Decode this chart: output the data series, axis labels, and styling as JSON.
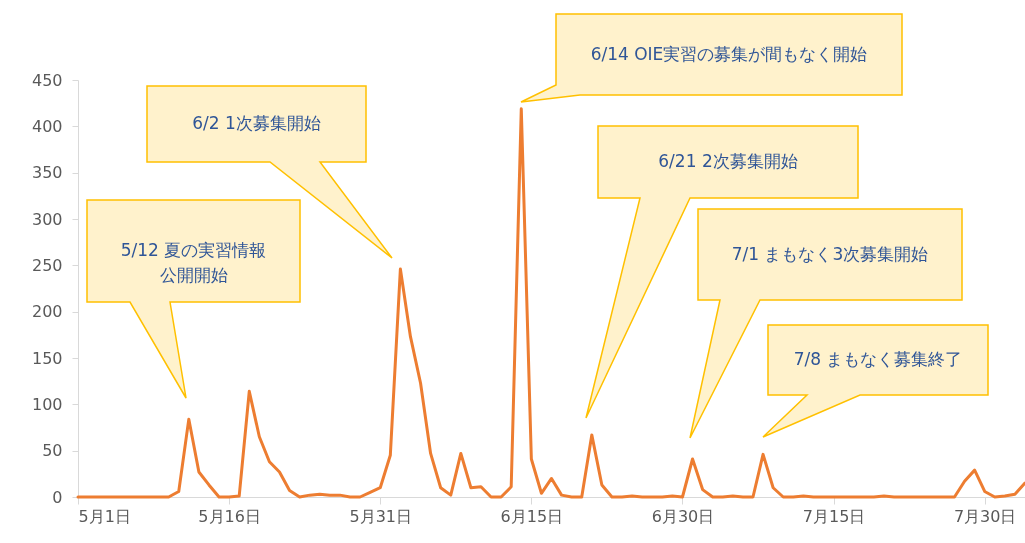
{
  "chart_data": {
    "type": "line",
    "x": [
      "--05-01",
      "--05-02",
      "--05-03",
      "--05-04",
      "--05-05",
      "--05-06",
      "--05-07",
      "--05-08",
      "--05-09",
      "--05-10",
      "--05-11",
      "--05-12",
      "--05-13",
      "--05-14",
      "--05-15",
      "--05-16",
      "--05-17",
      "--05-18",
      "--05-19",
      "--05-20",
      "--05-21",
      "--05-22",
      "--05-23",
      "--05-24",
      "--05-25",
      "--05-26",
      "--05-27",
      "--05-28",
      "--05-29",
      "--05-30",
      "--05-31",
      "--06-01",
      "--06-02",
      "--06-03",
      "--06-04",
      "--06-05",
      "--06-06",
      "--06-07",
      "--06-08",
      "--06-09",
      "--06-10",
      "--06-11",
      "--06-12",
      "--06-13",
      "--06-14",
      "--06-15",
      "--06-16",
      "--06-17",
      "--06-18",
      "--06-19",
      "--06-20",
      "--06-21",
      "--06-22",
      "--06-23",
      "--06-24",
      "--06-25",
      "--06-26",
      "--06-27",
      "--06-28",
      "--06-29",
      "--06-30",
      "--07-01",
      "--07-02",
      "--07-03",
      "--07-04",
      "--07-05",
      "--07-06",
      "--07-07",
      "--07-08",
      "--07-09",
      "--07-10",
      "--07-11",
      "--07-12",
      "--07-13",
      "--07-14",
      "--07-15",
      "--07-16",
      "--07-17",
      "--07-18",
      "--07-19",
      "--07-20",
      "--07-21",
      "--07-22",
      "--07-23",
      "--07-24",
      "--07-25",
      "--07-26",
      "--07-27",
      "--07-28",
      "--07-29",
      "--07-30",
      "--07-31",
      "--08-01",
      "--08-02",
      "--08-03"
    ],
    "series": [
      {
        "color": "#ed7d31",
        "values": [
          0,
          0,
          0,
          0,
          0,
          0,
          0,
          0,
          0,
          0,
          6,
          84,
          27,
          13,
          0,
          0,
          1,
          114,
          65,
          38,
          27,
          7,
          0,
          2,
          3,
          2,
          2,
          0,
          0,
          5,
          10,
          45,
          246,
          173,
          123,
          47,
          10,
          2,
          47,
          10,
          11,
          0,
          0,
          11,
          419,
          41,
          4,
          20,
          2,
          0,
          0,
          67,
          13,
          0,
          0,
          1,
          0,
          0,
          0,
          1,
          0,
          41,
          8,
          0,
          0,
          1,
          0,
          0,
          46,
          10,
          0,
          0,
          1,
          0,
          0,
          0,
          0,
          0,
          0,
          0,
          1,
          0,
          0,
          0,
          0,
          0,
          0,
          0,
          17,
          29,
          6,
          0,
          1,
          3,
          15
        ]
      }
    ],
    "xlim": [
      "--05-01",
      "--08-03"
    ],
    "xticks": [
      {
        "value": "--05-01",
        "label": "5月1日"
      },
      {
        "value": "--05-16",
        "label": "5月16日"
      },
      {
        "value": "--05-31",
        "label": "5月31日"
      },
      {
        "value": "--06-15",
        "label": "6月15日"
      },
      {
        "value": "--06-30",
        "label": "6月30日"
      },
      {
        "value": "--07-15",
        "label": "7月15日"
      },
      {
        "value": "--07-30",
        "label": "7月30日"
      }
    ],
    "ylim": [
      0,
      450
    ],
    "yticks": [
      0,
      50,
      100,
      150,
      200,
      250,
      300,
      350,
      400,
      450
    ],
    "annotations": [
      "5/12  夏の実習情報公開開始",
      "6/2  1次募集開始",
      "6/14  OIE実習の募集が間もなく開始",
      "6/21  2次募集開始",
      "7/1  まもなく3次募集開始",
      "7/8  まもなく募集終了"
    ]
  }
}
